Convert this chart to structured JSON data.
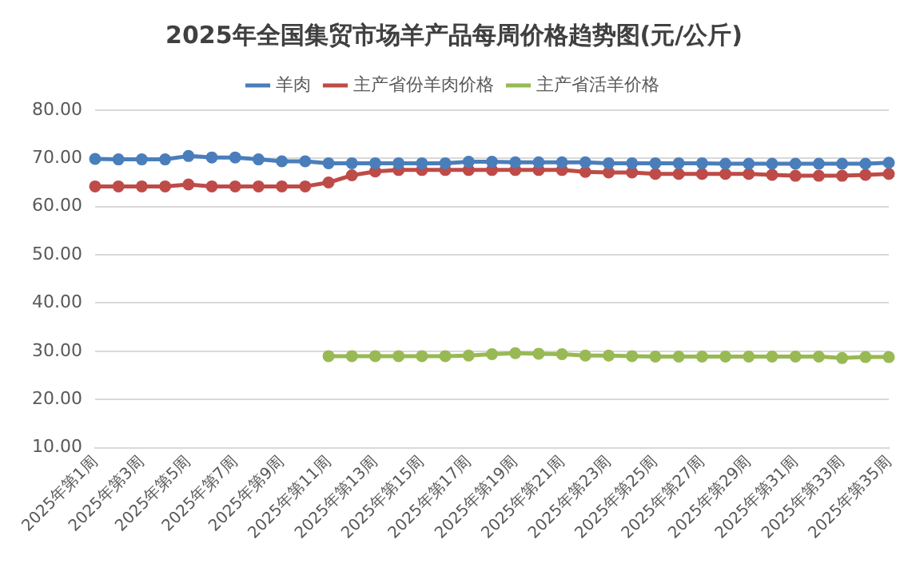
{
  "chart_data": {
    "type": "line",
    "title": "2025年全国集贸市场羊产品每周价格趋势图(元/公斤)",
    "categories": [
      "2025年第1周",
      null,
      "2025年第3周",
      null,
      "2025年第5周",
      null,
      "2025年第7周",
      null,
      "2025年第9周",
      null,
      "2025年第11周",
      null,
      "2025年第13周",
      null,
      "2025年第15周",
      null,
      "2025年第17周",
      null,
      "2025年第19周",
      null,
      "2025年第21周",
      null,
      "2025年第23周",
      null,
      "2025年第25周",
      null,
      "2025年第27周",
      null,
      "2025年第29周",
      null,
      "2025年第31周",
      null,
      "2025年第33周",
      null,
      "2025年第35周"
    ],
    "series": [
      {
        "name": "羊肉",
        "color": "#4a7ebb",
        "values": [
          69.9,
          69.8,
          69.8,
          69.8,
          70.5,
          70.2,
          70.2,
          69.8,
          69.4,
          69.4,
          69.0,
          69.0,
          69.0,
          69.0,
          69.0,
          69.0,
          69.3,
          69.3,
          69.2,
          69.2,
          69.2,
          69.2,
          69.0,
          69.0,
          69.0,
          69.0,
          69.0,
          68.9,
          68.9,
          68.9,
          68.9,
          68.9,
          68.9,
          68.9,
          69.1
        ]
      },
      {
        "name": "主产省份羊肉价格",
        "color": "#be4b48",
        "values": [
          64.2,
          64.2,
          64.2,
          64.2,
          64.6,
          64.2,
          64.2,
          64.2,
          64.2,
          64.2,
          65.0,
          66.5,
          67.3,
          67.6,
          67.6,
          67.6,
          67.6,
          67.6,
          67.6,
          67.6,
          67.6,
          67.2,
          67.1,
          67.1,
          66.8,
          66.8,
          66.8,
          66.8,
          66.8,
          66.6,
          66.4,
          66.4,
          66.4,
          66.6,
          66.8
        ]
      },
      {
        "name": "主产省活羊价格",
        "color": "#98b954",
        "values": [
          null,
          null,
          null,
          null,
          null,
          null,
          null,
          null,
          null,
          null,
          29.0,
          29.0,
          29.0,
          29.0,
          29.0,
          29.0,
          29.1,
          29.4,
          29.6,
          29.5,
          29.4,
          29.1,
          29.1,
          29.0,
          28.9,
          28.9,
          28.9,
          28.9,
          28.9,
          28.9,
          28.9,
          28.9,
          28.6,
          28.8,
          28.8
        ]
      }
    ],
    "ylim": [
      10,
      80
    ],
    "yticks": [
      {
        "value": 10,
        "label": "10.00"
      },
      {
        "value": 20,
        "label": "20.00"
      },
      {
        "value": 30,
        "label": "30.00"
      },
      {
        "value": 40,
        "label": "40.00"
      },
      {
        "value": 50,
        "label": "50.00"
      },
      {
        "value": 60,
        "label": "60.00"
      },
      {
        "value": 70,
        "label": "70.00"
      },
      {
        "value": 80,
        "label": "80.00"
      }
    ],
    "grid": "y",
    "legend": "top",
    "marker": "circle",
    "line_style": "solid"
  }
}
